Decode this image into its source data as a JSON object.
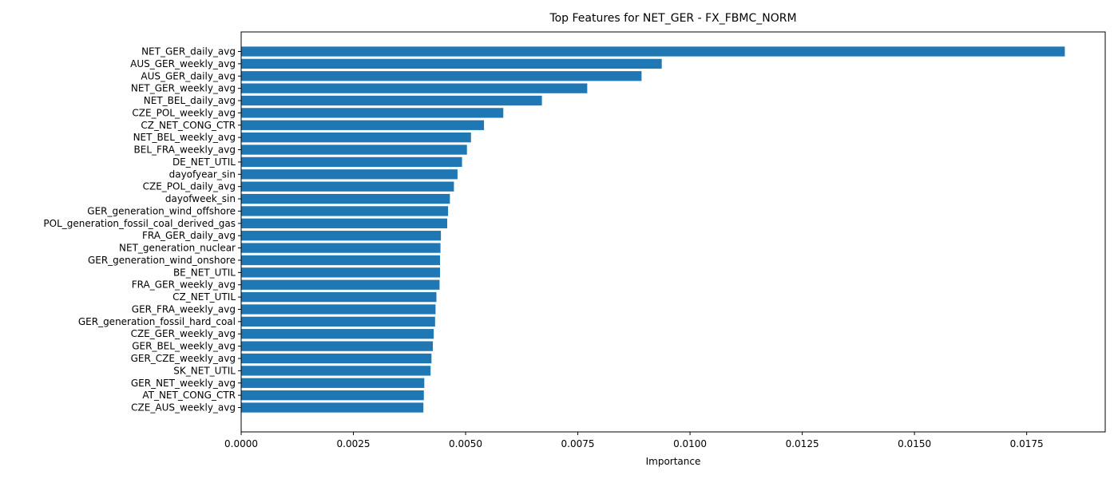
{
  "chart_data": {
    "type": "bar",
    "orientation": "horizontal",
    "title": "Top Features for NET_GER - FX_FBMC_NORM",
    "xlabel": "Importance",
    "ylabel": "",
    "xlim": [
      0,
      0.01925
    ],
    "xticks": [
      0.0,
      0.0025,
      0.005,
      0.0075,
      0.01,
      0.0125,
      0.015,
      0.0175
    ],
    "xtick_labels": [
      "0.0000",
      "0.0025",
      "0.0050",
      "0.0075",
      "0.0100",
      "0.0125",
      "0.0150",
      "0.0175"
    ],
    "grid": false,
    "legend": "none",
    "bar_color": "#1f77b4",
    "categories": [
      "NET_GER_daily_avg",
      "AUS_GER_weekly_avg",
      "AUS_GER_daily_avg",
      "NET_GER_weekly_avg",
      "NET_BEL_daily_avg",
      "CZE_POL_weekly_avg",
      "CZ_NET_CONG_CTR",
      "NET_BEL_weekly_avg",
      "BEL_FRA_weekly_avg",
      "DE_NET_UTIL",
      "dayofyear_sin",
      "CZE_POL_daily_avg",
      "dayofweek_sin",
      "GER_generation_wind_offshore",
      "POL_generation_fossil_coal_derived_gas",
      "FRA_GER_daily_avg",
      "NET_generation_nuclear",
      "GER_generation_wind_onshore",
      "BE_NET_UTIL",
      "FRA_GER_weekly_avg",
      "CZ_NET_UTIL",
      "GER_FRA_weekly_avg",
      "GER_generation_fossil_hard_coal",
      "CZE_GER_weekly_avg",
      "GER_BEL_weekly_avg",
      "GER_CZE_weekly_avg",
      "SK_NET_UTIL",
      "GER_NET_weekly_avg",
      "AT_NET_CONG_CTR",
      "CZE_AUS_weekly_avg"
    ],
    "values": [
      0.01835,
      0.00937,
      0.00892,
      0.00771,
      0.0067,
      0.00584,
      0.00541,
      0.00512,
      0.00503,
      0.00492,
      0.00482,
      0.00474,
      0.00465,
      0.00461,
      0.00459,
      0.00445,
      0.00444,
      0.00443,
      0.00443,
      0.00442,
      0.00435,
      0.00433,
      0.00432,
      0.00429,
      0.00427,
      0.00424,
      0.00422,
      0.00408,
      0.00407,
      0.00406
    ]
  }
}
